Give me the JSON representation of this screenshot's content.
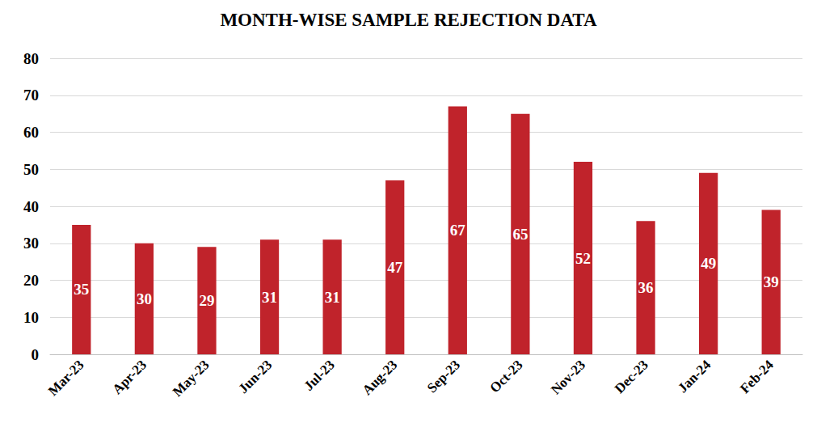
{
  "chart_data": {
    "type": "bar",
    "title": "MONTH-WISE SAMPLE REJECTION DATA",
    "categories": [
      "Mar-23",
      "Apr-23",
      "May-23",
      "Jun-23",
      "Jul-23",
      "Aug-23",
      "Sep-23",
      "Oct-23",
      "Nov-23",
      "Dec-23",
      "Jan-24",
      "Feb-24"
    ],
    "values": [
      35,
      30,
      29,
      31,
      31,
      47,
      67,
      65,
      52,
      36,
      49,
      39
    ],
    "color": "#c0232b",
    "ylim": [
      0,
      80
    ],
    "yticks": [
      0,
      10,
      20,
      30,
      40,
      50,
      60,
      70,
      80
    ],
    "grid": true,
    "data_labels": true
  }
}
